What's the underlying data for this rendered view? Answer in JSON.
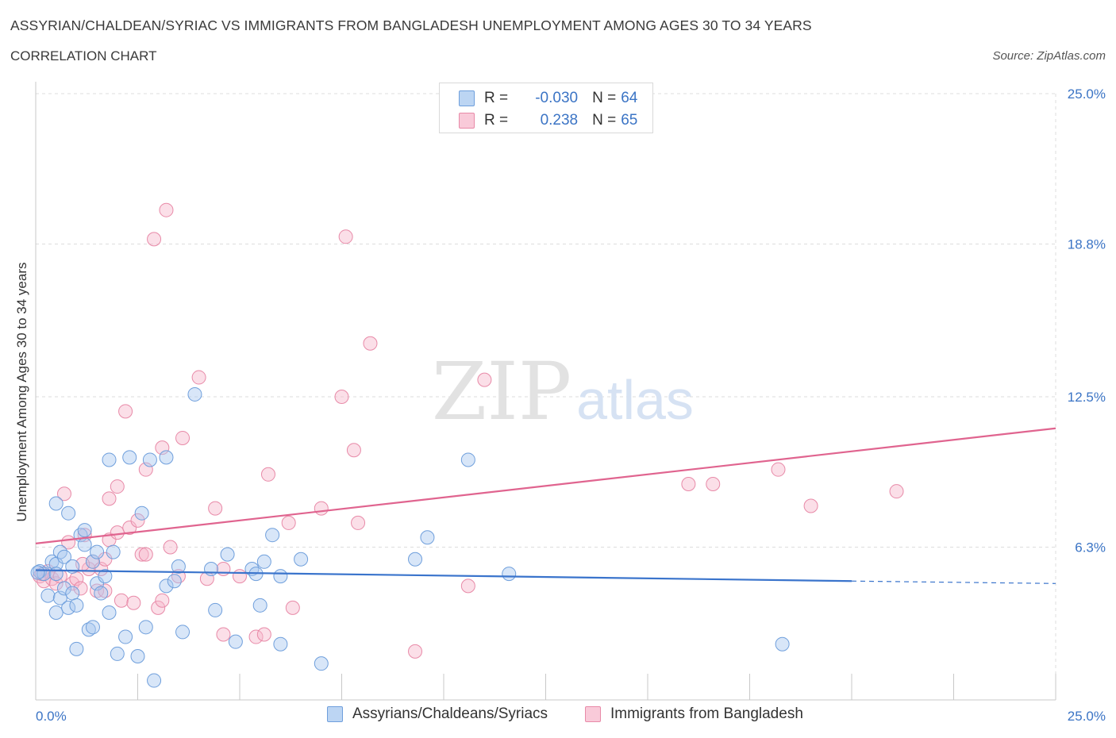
{
  "header": {
    "title": "ASSYRIAN/CHALDEAN/SYRIAC VS IMMIGRANTS FROM BANGLADESH UNEMPLOYMENT AMONG AGES 30 TO 34 YEARS",
    "subtitle": "CORRELATION CHART",
    "source": "Source: ZipAtlas.com"
  },
  "watermark": {
    "zip": "ZIP",
    "atlas": "atlas"
  },
  "colors": {
    "blue_fill": "#a9c8ef",
    "blue_stroke": "#6f9fdc",
    "blue_line": "#3a74cc",
    "pink_fill": "#f6b8cc",
    "pink_stroke": "#e88aa8",
    "pink_line": "#e0648f",
    "axis_label_blue": "#3b74c5",
    "grid": "#dddddd"
  },
  "legend": {
    "rows": [
      {
        "r_label": "R =",
        "r_value": "-0.030",
        "n_label": "N =",
        "n_value": "64",
        "series": "blue"
      },
      {
        "r_label": "R =",
        "r_value": "0.238",
        "n_label": "N =",
        "n_value": "65",
        "series": "pink"
      }
    ]
  },
  "bottom_legend": {
    "items": [
      {
        "label": "Assyrians/Chaldeans/Syriacs",
        "series": "blue"
      },
      {
        "label": "Immigrants from Bangladesh",
        "series": "pink"
      }
    ]
  },
  "chart_data": {
    "type": "scatter",
    "title": "ASSYRIAN/CHALDEAN/SYRIAC VS IMMIGRANTS FROM BANGLADESH UNEMPLOYMENT AMONG AGES 30 TO 34 YEARS",
    "subtitle": "CORRELATION CHART",
    "xlabel": "",
    "ylabel": "Unemployment Among Ages 30 to 34 years",
    "xlim": [
      0,
      25
    ],
    "ylim": [
      0,
      25
    ],
    "x_tick_labels": [
      {
        "value": 0,
        "label": "0.0%"
      },
      {
        "value": 25,
        "label": "25.0%"
      }
    ],
    "y_tick_labels": [
      {
        "value": 6.3,
        "label": "6.3%"
      },
      {
        "value": 12.5,
        "label": "12.5%"
      },
      {
        "value": 18.8,
        "label": "18.8%"
      },
      {
        "value": 25.0,
        "label": "25.0%"
      }
    ],
    "x_minor_ticks": [
      2.5,
      5,
      7.5,
      10,
      12.5,
      15,
      17.5,
      20,
      22.5,
      25
    ],
    "grid": true,
    "legend_position": "top-center",
    "series": [
      {
        "name": "Assyrians/Chaldeans/Syriacs",
        "r": -0.03,
        "n": 64,
        "trend": {
          "x0": 0,
          "y0": 5.35,
          "x1": 20,
          "y1": 4.9,
          "dashed_to_x": 25,
          "dashed_to_y": 4.8
        },
        "points": [
          [
            0.1,
            5.3
          ],
          [
            0.2,
            5.2
          ],
          [
            0.3,
            4.3
          ],
          [
            0.4,
            5.7
          ],
          [
            0.5,
            3.6
          ],
          [
            0.5,
            5.6
          ],
          [
            0.5,
            5.2
          ],
          [
            0.5,
            8.1
          ],
          [
            0.6,
            4.2
          ],
          [
            0.6,
            6.1
          ],
          [
            0.7,
            5.9
          ],
          [
            0.7,
            4.6
          ],
          [
            0.8,
            7.7
          ],
          [
            0.8,
            3.8
          ],
          [
            0.9,
            4.4
          ],
          [
            0.9,
            5.5
          ],
          [
            1.0,
            3.9
          ],
          [
            1.0,
            2.1
          ],
          [
            1.1,
            6.8
          ],
          [
            1.2,
            7.0
          ],
          [
            1.2,
            6.4
          ],
          [
            1.3,
            2.9
          ],
          [
            1.4,
            5.7
          ],
          [
            1.4,
            3.0
          ],
          [
            1.5,
            6.1
          ],
          [
            1.5,
            4.8
          ],
          [
            1.6,
            4.4
          ],
          [
            1.7,
            5.1
          ],
          [
            1.8,
            9.9
          ],
          [
            1.8,
            3.6
          ],
          [
            1.9,
            6.1
          ],
          [
            2.0,
            1.9
          ],
          [
            2.2,
            2.6
          ],
          [
            2.3,
            10.0
          ],
          [
            2.5,
            1.8
          ],
          [
            2.6,
            7.7
          ],
          [
            2.7,
            3.0
          ],
          [
            2.8,
            9.9
          ],
          [
            2.9,
            0.8
          ],
          [
            3.2,
            10.0
          ],
          [
            3.2,
            4.7
          ],
          [
            3.4,
            4.9
          ],
          [
            3.5,
            5.5
          ],
          [
            3.6,
            2.8
          ],
          [
            3.9,
            12.6
          ],
          [
            4.3,
            5.4
          ],
          [
            4.4,
            3.7
          ],
          [
            4.7,
            6.0
          ],
          [
            4.9,
            2.4
          ],
          [
            5.3,
            5.4
          ],
          [
            5.4,
            5.2
          ],
          [
            5.5,
            3.9
          ],
          [
            5.6,
            5.7
          ],
          [
            5.8,
            6.8
          ],
          [
            6.0,
            5.1
          ],
          [
            6.0,
            2.3
          ],
          [
            6.5,
            5.8
          ],
          [
            7.0,
            1.5
          ],
          [
            9.3,
            5.8
          ],
          [
            9.6,
            6.7
          ],
          [
            10.6,
            9.9
          ],
          [
            11.6,
            5.2
          ],
          [
            18.3,
            2.3
          ],
          [
            0.05,
            5.25
          ]
        ]
      },
      {
        "name": "Immigrants from Bangladesh",
        "r": 0.238,
        "n": 65,
        "trend": {
          "x0": 0,
          "y0": 6.45,
          "x1": 25,
          "y1": 11.2
        },
        "points": [
          [
            0.1,
            5.1
          ],
          [
            0.2,
            4.9
          ],
          [
            0.3,
            5.3
          ],
          [
            0.4,
            5.0
          ],
          [
            0.5,
            4.8
          ],
          [
            0.6,
            5.1
          ],
          [
            0.7,
            8.5
          ],
          [
            0.8,
            6.5
          ],
          [
            0.9,
            4.8
          ],
          [
            1.0,
            5.0
          ],
          [
            1.1,
            4.6
          ],
          [
            1.2,
            6.8
          ],
          [
            1.3,
            5.4
          ],
          [
            1.4,
            5.7
          ],
          [
            1.5,
            4.5
          ],
          [
            1.6,
            5.4
          ],
          [
            1.7,
            5.8
          ],
          [
            1.8,
            6.6
          ],
          [
            1.8,
            8.3
          ],
          [
            2.0,
            6.9
          ],
          [
            2.0,
            8.8
          ],
          [
            2.1,
            4.1
          ],
          [
            2.2,
            11.9
          ],
          [
            2.3,
            7.1
          ],
          [
            2.4,
            4.0
          ],
          [
            2.5,
            7.4
          ],
          [
            2.6,
            6.0
          ],
          [
            2.7,
            6.0
          ],
          [
            2.7,
            9.5
          ],
          [
            2.9,
            19.0
          ],
          [
            3.0,
            3.8
          ],
          [
            3.1,
            4.1
          ],
          [
            3.1,
            10.4
          ],
          [
            3.2,
            20.2
          ],
          [
            3.3,
            6.3
          ],
          [
            3.5,
            5.1
          ],
          [
            3.6,
            10.8
          ],
          [
            4.0,
            13.3
          ],
          [
            4.2,
            5.0
          ],
          [
            4.4,
            7.9
          ],
          [
            4.6,
            5.4
          ],
          [
            4.6,
            2.7
          ],
          [
            5.0,
            5.1
          ],
          [
            5.4,
            2.6
          ],
          [
            5.6,
            2.7
          ],
          [
            5.7,
            9.3
          ],
          [
            6.2,
            7.3
          ],
          [
            6.3,
            3.8
          ],
          [
            7.0,
            7.9
          ],
          [
            7.5,
            12.5
          ],
          [
            7.6,
            19.1
          ],
          [
            7.8,
            10.3
          ],
          [
            7.9,
            7.3
          ],
          [
            8.2,
            14.7
          ],
          [
            9.3,
            2.0
          ],
          [
            10.6,
            4.7
          ],
          [
            11.0,
            13.2
          ],
          [
            16.0,
            8.9
          ],
          [
            16.6,
            8.9
          ],
          [
            18.2,
            9.5
          ],
          [
            19.0,
            8.0
          ],
          [
            21.1,
            8.6
          ],
          [
            0.15,
            5.2
          ],
          [
            1.15,
            5.6
          ],
          [
            1.7,
            4.5
          ]
        ]
      }
    ]
  }
}
